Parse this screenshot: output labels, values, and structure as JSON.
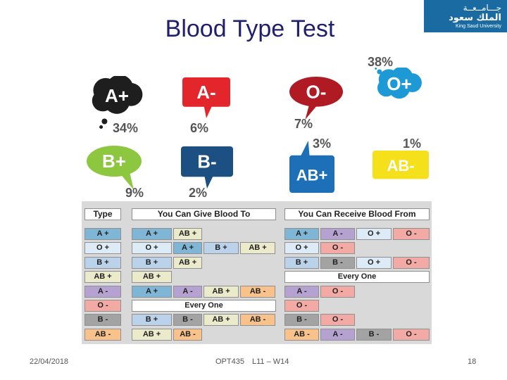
{
  "slide": {
    "title": "Blood Type Test",
    "logo": {
      "arabic_line1": "جـــامــعــة",
      "arabic_line2": "الملك سعود",
      "english": "King Saud University"
    }
  },
  "blood_types": [
    {
      "label": "A+",
      "percent": "34%",
      "color": "#1e1e1e",
      "shape": "thought-cloud"
    },
    {
      "label": "A-",
      "percent": "6%",
      "color": "#e3262b",
      "shape": "speech-square"
    },
    {
      "label": "O-",
      "percent": "7%",
      "color": "#b01a22",
      "shape": "speech-oval"
    },
    {
      "label": "O+",
      "percent": "38%",
      "color": "#1d9ad6",
      "shape": "thought-cloud"
    },
    {
      "label": "B+",
      "percent": "9%",
      "color": "#8dc63f",
      "shape": "speech-oval"
    },
    {
      "label": "B-",
      "percent": "2%",
      "color": "#1c4f82",
      "shape": "speech-square"
    },
    {
      "label": "AB+",
      "percent": "3%",
      "color": "#1d6fb8",
      "shape": "speech-square"
    },
    {
      "label": "AB-",
      "percent": "1%",
      "color": "#f5e11b",
      "shape": "speech-square"
    }
  ],
  "table": {
    "headers": {
      "type": "Type",
      "give": "You Can Give Blood To",
      "receive": "You Can Receive Blood From"
    },
    "colors": {
      "A+": "#7fb6d6",
      "O+": "#dcebf6",
      "B+": "#bad3ea",
      "AB+": "#ebebcb",
      "A-": "#b6a2d0",
      "O-": "#f3a9a4",
      "B-": "#a3a3a3",
      "AB-": "#f8c28a",
      "every": "#ffffff"
    },
    "rows": [
      {
        "type": "A +",
        "type_key": "A+",
        "give": [
          [
            "A +",
            "A+"
          ],
          [
            "AB +",
            "AB+"
          ]
        ],
        "receive": [
          [
            "A +",
            "A+"
          ],
          [
            "A -",
            "A-"
          ],
          [
            "O +",
            "O+"
          ],
          [
            "O -",
            "O-"
          ]
        ]
      },
      {
        "type": "O +",
        "type_key": "O+",
        "give": [
          [
            "O +",
            "O+"
          ],
          [
            "A +",
            "A+"
          ],
          [
            "B +",
            "B+"
          ],
          [
            "AB +",
            "AB+"
          ]
        ],
        "receive": [
          [
            "O +",
            "O+"
          ],
          [
            "O -",
            "O-"
          ]
        ]
      },
      {
        "type": "B +",
        "type_key": "B+",
        "give": [
          [
            "B +",
            "B+"
          ],
          [
            "AB +",
            "AB+"
          ]
        ],
        "receive": [
          [
            "B +",
            "B+"
          ],
          [
            "B -",
            "B-"
          ],
          [
            "O +",
            "O+"
          ],
          [
            "O -",
            "O-"
          ]
        ]
      },
      {
        "type": "AB +",
        "type_key": "AB+",
        "give": [
          [
            "AB +",
            "AB+"
          ]
        ],
        "receive_every": "Every One"
      },
      {
        "type": "A -",
        "type_key": "A-",
        "give": [
          [
            "A +",
            "A+"
          ],
          [
            "A -",
            "A-"
          ],
          [
            "AB +",
            "AB+"
          ],
          [
            "AB -",
            "AB-"
          ]
        ],
        "receive": [
          [
            "A -",
            "A-"
          ],
          [
            "O -",
            "O-"
          ]
        ]
      },
      {
        "type": "O -",
        "type_key": "O-",
        "give_every": "Every One",
        "receive": [
          [
            "O -",
            "O-"
          ]
        ]
      },
      {
        "type": "B -",
        "type_key": "B-",
        "give": [
          [
            "B +",
            "B+"
          ],
          [
            "B -",
            "B-"
          ],
          [
            "AB +",
            "AB+"
          ],
          [
            "AB -",
            "AB-"
          ]
        ],
        "receive": [
          [
            "B -",
            "B-"
          ],
          [
            "O -",
            "O-"
          ]
        ]
      },
      {
        "type": "AB -",
        "type_key": "AB-",
        "give": [
          [
            "AB +",
            "AB+"
          ],
          [
            "AB -",
            "AB-"
          ]
        ],
        "receive": [
          [
            "AB -",
            "AB-"
          ],
          [
            "A -",
            "A-"
          ],
          [
            "B -",
            "B-"
          ],
          [
            "O -",
            "O-"
          ]
        ]
      }
    ]
  },
  "footer": {
    "date": "22/04/2018",
    "course": "OPT435",
    "lecture": "L11 –  W14",
    "page": "18"
  }
}
